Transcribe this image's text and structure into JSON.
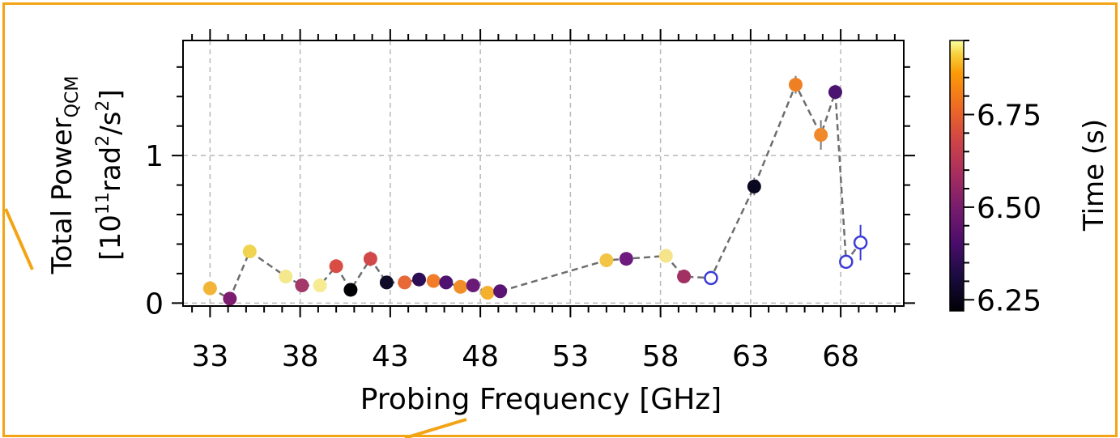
{
  "chart_data": {
    "type": "scatter",
    "xlabel": "Probing Frequency [GHz]",
    "ylabel_line1_main": "Total Power",
    "ylabel_line1_sub": "QCM",
    "ylabel_line2_prefix": "[10",
    "ylabel_line2_sup1": "11",
    "ylabel_line2_mid": "rad",
    "ylabel_line2_sup2": "2",
    "ylabel_line2_mid2": "/s",
    "ylabel_line2_sup3": "2",
    "ylabel_line2_suffix": "]",
    "xlim": [
      31.5,
      71.5
    ],
    "ylim": [
      -0.02,
      1.78
    ],
    "x_ticks": [
      33,
      38,
      43,
      48,
      53,
      58,
      63,
      68
    ],
    "x_tick_labels": [
      "33",
      "38",
      "43",
      "48",
      "53",
      "58",
      "63",
      "68"
    ],
    "y_ticks": [
      0,
      1
    ],
    "y_tick_labels": [
      "0",
      "1"
    ],
    "grid": true,
    "colorbar": {
      "label": "Time (s)",
      "range": [
        6.22,
        6.95
      ],
      "ticks": [
        6.25,
        6.5,
        6.75
      ],
      "tick_labels": [
        "6.25",
        "6.50",
        "6.75"
      ],
      "colormap": "inferno"
    },
    "points": [
      {
        "x": 33.0,
        "y": 0.1,
        "err": 0.02,
        "color": "#f2b538",
        "filled": true
      },
      {
        "x": 34.1,
        "y": 0.03,
        "err": 0.02,
        "color": "#7c1d6f",
        "filled": true
      },
      {
        "x": 35.2,
        "y": 0.35,
        "err": 0.03,
        "color": "#f0d450",
        "filled": true
      },
      {
        "x": 37.2,
        "y": 0.18,
        "err": 0.02,
        "color": "#f4e88e",
        "filled": true
      },
      {
        "x": 38.1,
        "y": 0.12,
        "err": 0.02,
        "color": "#a2396a",
        "filled": true
      },
      {
        "x": 39.1,
        "y": 0.12,
        "err": 0.02,
        "color": "#f6eb90",
        "filled": true
      },
      {
        "x": 40.0,
        "y": 0.25,
        "err": 0.02,
        "color": "#d94d44",
        "filled": true
      },
      {
        "x": 40.8,
        "y": 0.09,
        "err": 0.02,
        "color": "#000004",
        "filled": true
      },
      {
        "x": 41.9,
        "y": 0.3,
        "err": 0.05,
        "color": "#d24848",
        "filled": true
      },
      {
        "x": 42.8,
        "y": 0.14,
        "err": 0.03,
        "color": "#0e0a28",
        "filled": true
      },
      {
        "x": 43.8,
        "y": 0.14,
        "err": 0.02,
        "color": "#e86838",
        "filled": true
      },
      {
        "x": 44.6,
        "y": 0.16,
        "err": 0.02,
        "color": "#2d0d55",
        "filled": true
      },
      {
        "x": 45.4,
        "y": 0.15,
        "err": 0.02,
        "color": "#f17d2a",
        "filled": true
      },
      {
        "x": 46.1,
        "y": 0.14,
        "err": 0.02,
        "color": "#4e1270",
        "filled": true
      },
      {
        "x": 46.9,
        "y": 0.11,
        "err": 0.02,
        "color": "#f28e28",
        "filled": true
      },
      {
        "x": 47.6,
        "y": 0.12,
        "err": 0.02,
        "color": "#6a1b78",
        "filled": true
      },
      {
        "x": 48.4,
        "y": 0.07,
        "err": 0.02,
        "color": "#f5b02e",
        "filled": true
      },
      {
        "x": 49.1,
        "y": 0.08,
        "err": 0.02,
        "color": "#5a1474",
        "filled": true
      },
      {
        "x": 55.0,
        "y": 0.29,
        "err": 0.03,
        "color": "#f4c444",
        "filled": true
      },
      {
        "x": 56.1,
        "y": 0.3,
        "err": 0.02,
        "color": "#6e1a7e",
        "filled": true
      },
      {
        "x": 58.3,
        "y": 0.32,
        "err": 0.03,
        "color": "#f6e48a",
        "filled": true
      },
      {
        "x": 59.3,
        "y": 0.18,
        "err": 0.02,
        "color": "#a33062",
        "filled": true
      },
      {
        "x": 60.8,
        "y": 0.17,
        "err": 0.03,
        "color": "#3b3bd6",
        "filled": false
      },
      {
        "x": 63.2,
        "y": 0.79,
        "err": 0.06,
        "color": "#0a0720",
        "filled": true
      },
      {
        "x": 65.5,
        "y": 1.48,
        "err": 0.06,
        "color": "#ee7f22",
        "filled": true
      },
      {
        "x": 66.9,
        "y": 1.14,
        "err": 0.1,
        "color": "#f0892a",
        "filled": true
      },
      {
        "x": 67.7,
        "y": 1.43,
        "err": 0.05,
        "color": "#4a1470",
        "filled": true
      },
      {
        "x": 68.3,
        "y": 0.28,
        "err": 0.04,
        "color": "#3b3bd6",
        "filled": false
      },
      {
        "x": 69.1,
        "y": 0.41,
        "err": 0.12,
        "color": "#3b3bd6",
        "filled": false
      }
    ]
  }
}
